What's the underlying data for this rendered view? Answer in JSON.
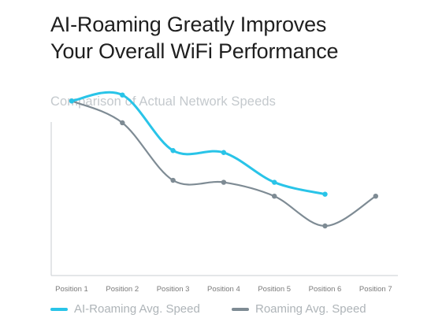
{
  "header": {
    "title_line1": "AI-Roaming Greatly Improves",
    "title_line2": "Your Overall WiFi Performance"
  },
  "colors": {
    "ai_roaming": "#29c4e8",
    "roaming": "#7e8b94",
    "axis": "#c9cdd0",
    "tick_label": "#7a7a7a"
  },
  "chart_data": {
    "type": "line",
    "title": "Comparison of Actual Network Speeds",
    "xlabel": "",
    "ylabel": "",
    "categories": [
      "Position 1",
      "Position 2",
      "Position 3",
      "Position 4",
      "Position 5",
      "Position 6",
      "Position 7"
    ],
    "ylim": [
      0,
      100
    ],
    "grid": false,
    "legend": "bottom",
    "series": [
      {
        "name": "AI-Roaming Avg. Speed",
        "color": "#29c4e8",
        "values": [
          88,
          91,
          63,
          62,
          47,
          41,
          null
        ]
      },
      {
        "name": "Roaming Avg. Speed",
        "color": "#7e8b94",
        "values": [
          88,
          77,
          48,
          47,
          40,
          25,
          40
        ]
      }
    ]
  }
}
